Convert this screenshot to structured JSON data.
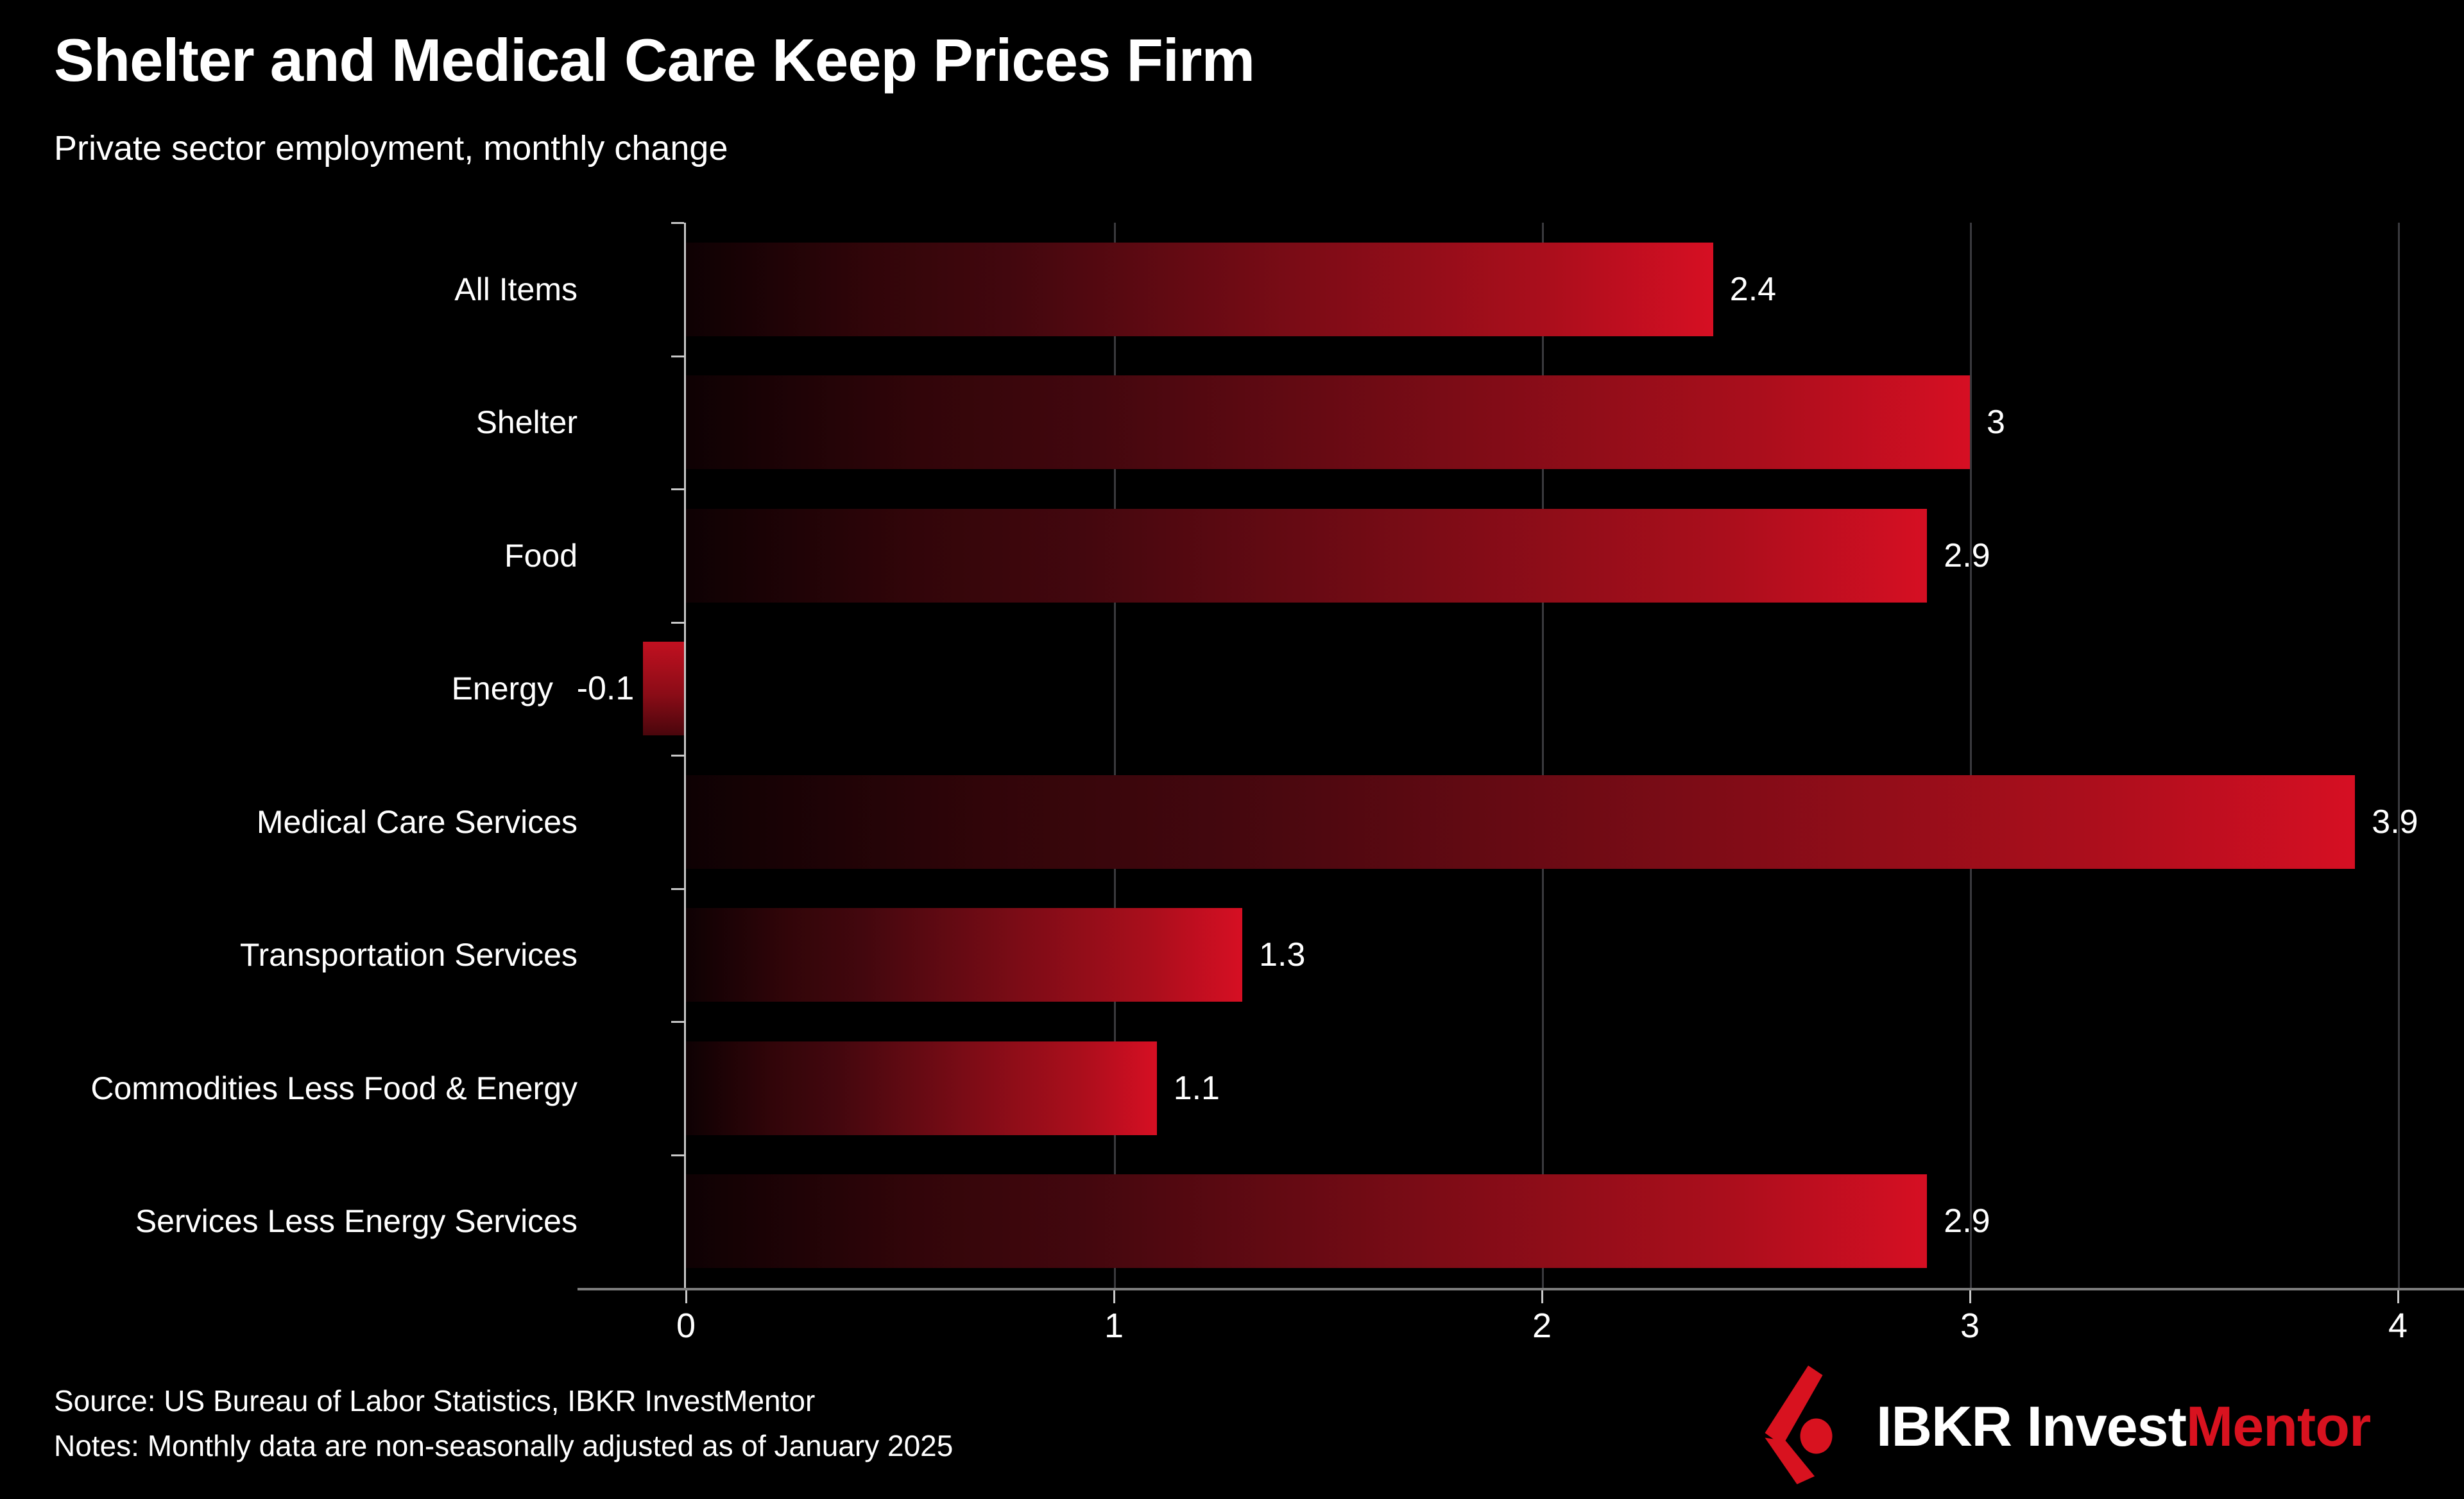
{
  "header": {
    "title": "Shelter and Medical Care Keep Prices Firm",
    "subtitle": "Private sector employment, monthly change"
  },
  "chart_data": {
    "type": "bar",
    "orientation": "horizontal",
    "categories": [
      "All Items",
      "Shelter",
      "Food",
      "Energy",
      "Medical Care Services",
      "Transportation Services",
      "Commodities Less Food & Energy",
      "Services Less Energy Services"
    ],
    "values": [
      2.4,
      3,
      2.9,
      -0.1,
      3.9,
      1.3,
      1.1,
      2.9
    ],
    "value_labels": [
      "2.4",
      "3",
      "2.9",
      "-0.1",
      "3.9",
      "1.3",
      "1.1",
      "2.9"
    ],
    "title": "Shelter and Medical Care Keep Prices Firm",
    "xlabel": "",
    "ylabel": "",
    "xlim": [
      0,
      4
    ],
    "xticks": [
      "0",
      "1",
      "2",
      "3",
      "4"
    ],
    "grid": "vertical-at-integers",
    "legend": "none"
  },
  "colors": {
    "background": "#000000",
    "bar_gradient_start": "#0e0103",
    "bar_gradient_end": "#d60f23",
    "gridline": "#3a3a3e",
    "axis_line": "#7c7c7c",
    "spine": "#c8c8c8",
    "text": "#ffffff",
    "brand_red": "#d8121f"
  },
  "footer": {
    "source": "Source: US Bureau of Labor Statistics, IBKR InvestMentor",
    "notes": "Notes: Monthly data are non-seasonally adjusted as of January 2025"
  },
  "logo": {
    "mark": "ibkr-mark-icon",
    "brand_white": "IBKR Invest",
    "brand_red": "Mentor"
  }
}
